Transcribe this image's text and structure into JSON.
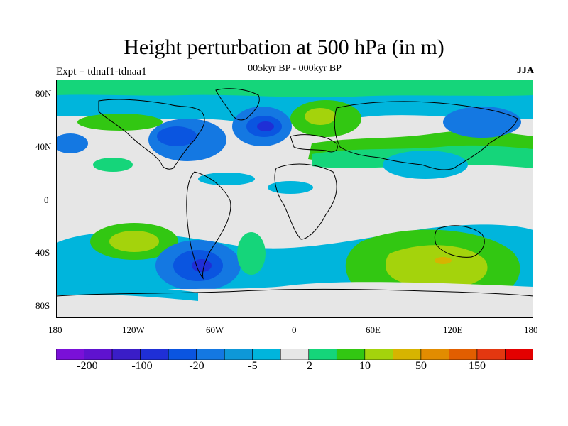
{
  "title": "Height perturbation at 500 hPa (in m)",
  "subtitle": "005kyr BP - 000kyr BP",
  "expt": "Expt = tdnaf1-tdnaa1",
  "season": "JJA",
  "lat_labels": [
    "80N",
    "40N",
    "0",
    "40S",
    "80S"
  ],
  "lon_labels": [
    "180",
    "120W",
    "60W",
    "0",
    "60E",
    "120E",
    "180"
  ],
  "colorbar": {
    "colors": [
      "#7a10d8",
      "#5f12cf",
      "#3a1dc7",
      "#1f2fd6",
      "#0a55e0",
      "#1478e2",
      "#0e98d8",
      "#00b5dc",
      "#e6e6e6",
      "#15d57a",
      "#32c712",
      "#a4d30c",
      "#d7b400",
      "#e28c00",
      "#e25e00",
      "#e33710",
      "#e30000"
    ],
    "labels": [
      "-200",
      "-100",
      "-20",
      "-5",
      "2",
      "10",
      "50",
      "150"
    ]
  }
}
